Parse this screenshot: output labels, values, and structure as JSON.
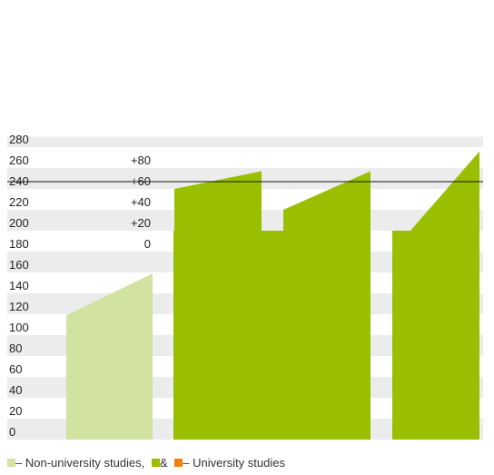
{
  "chart_data": {
    "type": "area",
    "y_ticks_left": [
      "280",
      "260",
      "240",
      "220",
      "200",
      "180",
      "160",
      "140",
      "120",
      "100",
      "80",
      "60",
      "40",
      "20",
      "0"
    ],
    "y_ticks_secondary": [
      "+80",
      "+60",
      "+40",
      "+20",
      "0"
    ],
    "secondary_baseline": 180,
    "ylim": [
      0,
      290
    ],
    "grid": "alternating horizontal bands",
    "series": [
      {
        "style": "light",
        "values": [
          119,
          159
        ]
      },
      {
        "style": "dark",
        "values": [
          139,
          200
        ]
      },
      {
        "style": "dark",
        "values": [
          200,
          200
        ]
      },
      {
        "style": "dark",
        "values": [
          240,
          257
        ]
      },
      {
        "style": "dark",
        "values": [
          220,
          257
        ]
      },
      {
        "style": "dark",
        "values": [
          180,
          276
        ]
      }
    ],
    "legend": {
      "items": [
        {
          "color": "#d1e2a1",
          "label": "– Non-university studies,"
        },
        {
          "color": "#99bf00",
          "label": "&"
        },
        {
          "color": "#f07f10",
          "label": "– University studies"
        }
      ]
    }
  },
  "colors": {
    "light": "#d1e2a1",
    "dark": "#99bf00",
    "band": "#ececec"
  }
}
